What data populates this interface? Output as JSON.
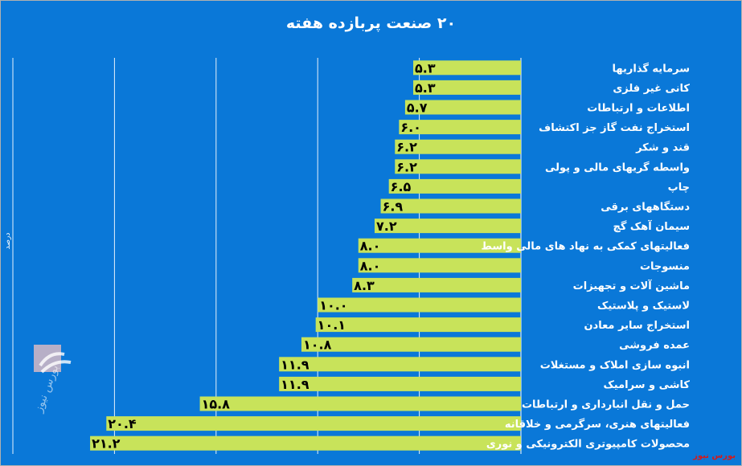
{
  "chart_data": {
    "type": "bar",
    "orientation": "horizontal",
    "title": "۲۰ صنعت پربازده هفته",
    "ylabel": "درصد",
    "categories": [
      "سرمایه گذاریها",
      "کانی غیر فلزی",
      "اطلاعات و ارتباطات",
      "استخراج نفت گاز جز اکتشاف",
      "قند و شکر",
      "واسطه گریهای مالی و پولی",
      "چاپ",
      "دستگاههای برقی",
      "سیمان آهک گچ",
      "فعالیتهای کمکی به نهاد های مالی واسط",
      "منسوجات",
      "ماشین آلات و تجهیزات",
      "لاستیک و پلاستیک",
      "استخراج سایر معادن",
      "عمده فروشی",
      "انبوه سازی املاک و مستغلات",
      "کاشی و سرامیک",
      "حمل و نقل انبارداری و ارتباطات",
      "فعالیتهای هنری، سرگرمی و خلاقانه",
      "محصولات کامپیوتری الکترونیکی و نوری"
    ],
    "values": [
      5.3,
      5.3,
      5.7,
      6.0,
      6.2,
      6.2,
      6.5,
      6.9,
      7.2,
      8.0,
      8.0,
      8.3,
      10.0,
      10.1,
      10.8,
      11.9,
      11.9,
      15.8,
      20.4,
      21.2
    ],
    "value_labels": [
      "۵.۳",
      "۵.۳",
      "۵.۷",
      "۶.۰",
      "۶.۲",
      "۶.۲",
      "۶.۵",
      "۶.۹",
      "۷.۲",
      "۸.۰",
      "۸.۰",
      "۸.۳",
      "۱۰.۰",
      "۱۰.۱",
      "۱۰.۸",
      "۱۱.۹",
      "۱۱.۹",
      "۱۵.۸",
      "۲۰.۴",
      "۲۱.۲"
    ],
    "xlim": [
      0,
      25
    ],
    "direction": "right-to-left",
    "grid": true,
    "legend": "none",
    "colors": {
      "background": "#0a78d8",
      "bar": "#c8e35a",
      "bar_label": "#000000",
      "category_label": "#ffffff",
      "grid": "#ffffff"
    }
  },
  "source": "بورس نیوز",
  "logo_icon": "bourse-news-logo"
}
